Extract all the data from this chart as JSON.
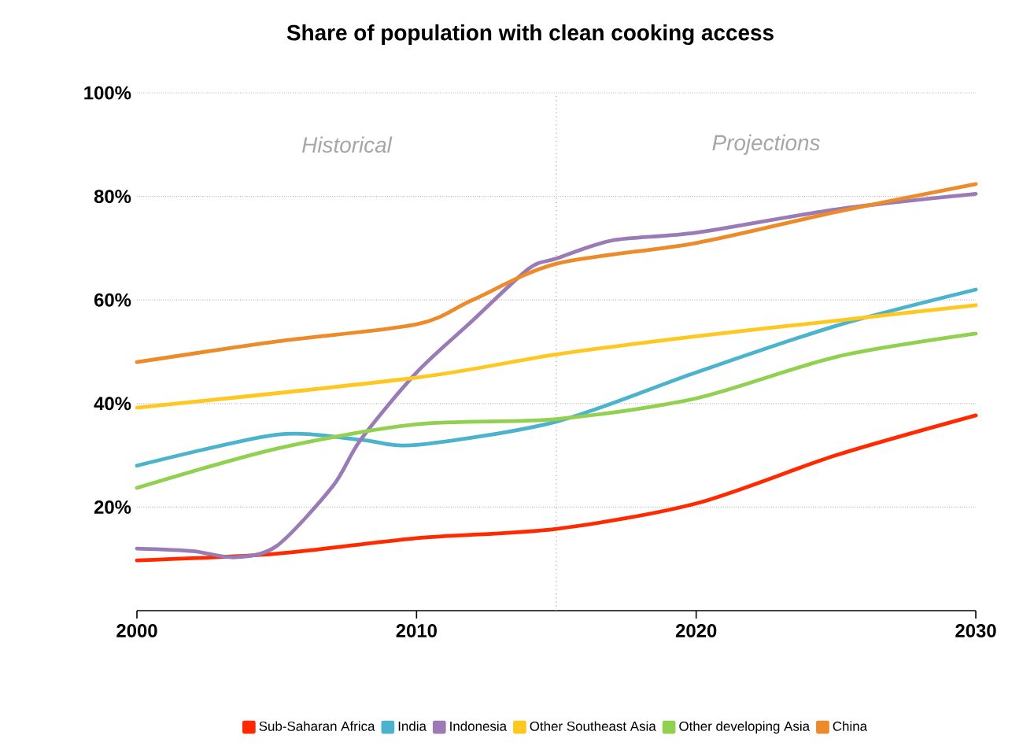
{
  "chart_data": {
    "type": "line",
    "title": "Share of population with clean cooking access",
    "xlim": [
      2000,
      2030
    ],
    "xticks": [
      2000,
      2010,
      2020,
      2030
    ],
    "ylim": [
      0,
      100
    ],
    "yticks": [
      {
        "value": 20,
        "label": "20%"
      },
      {
        "value": 40,
        "label": "40%"
      },
      {
        "value": 60,
        "label": "60%"
      },
      {
        "value": 80,
        "label": "80%"
      },
      {
        "value": 100,
        "label": "100%"
      }
    ],
    "grid": "y",
    "legend": "bottom",
    "marker": "none",
    "line_style": "solid",
    "ref_lines": [
      {
        "axis": "x",
        "value": 2015,
        "color": "#a6a6a6",
        "line_style": "dotted"
      }
    ],
    "annotations": [
      "Historical",
      "Projections"
    ],
    "series": [
      {
        "name": "Sub-Saharan Africa",
        "color": "#ff2a00",
        "x": [
          2000,
          2005,
          2010,
          2015,
          2020,
          2025,
          2030
        ],
        "values": [
          9.7,
          11,
          14,
          15.8,
          20.7,
          30,
          37.7
        ]
      },
      {
        "name": "India",
        "color": "#4bb4cc",
        "x": [
          2000,
          2005,
          2008,
          2010,
          2015,
          2020,
          2025,
          2030
        ],
        "values": [
          28,
          34,
          33,
          32,
          36.5,
          46,
          55,
          62
        ]
      },
      {
        "name": "Indonesia",
        "color": "#9b7bb5",
        "x": [
          2000,
          2002,
          2003.5,
          2005,
          2007,
          2008,
          2010,
          2012,
          2014,
          2015,
          2017,
          2020,
          2025,
          2030
        ],
        "values": [
          12,
          11.5,
          10.3,
          12.5,
          24,
          33,
          46,
          56,
          66,
          68,
          71.5,
          73,
          77.5,
          80.5
        ]
      },
      {
        "name": "Other Southeast Asia",
        "color": "#ffc820",
        "x": [
          2000,
          2010,
          2015,
          2020,
          2025,
          2030
        ],
        "values": [
          39.2,
          45,
          49.5,
          53,
          56,
          59
        ]
      },
      {
        "name": "Other developing  Asia",
        "color": "#92d050",
        "x": [
          2000,
          2005,
          2010,
          2015,
          2020,
          2025,
          2030
        ],
        "values": [
          23.7,
          31.3,
          36,
          37,
          41,
          49,
          53.5
        ]
      },
      {
        "name": "China",
        "color": "#ed8a2a",
        "x": [
          2000,
          2005,
          2010,
          2012,
          2015,
          2020,
          2025,
          2030
        ],
        "values": [
          48,
          52,
          55.3,
          60,
          67,
          71,
          77,
          82.4
        ]
      }
    ]
  }
}
